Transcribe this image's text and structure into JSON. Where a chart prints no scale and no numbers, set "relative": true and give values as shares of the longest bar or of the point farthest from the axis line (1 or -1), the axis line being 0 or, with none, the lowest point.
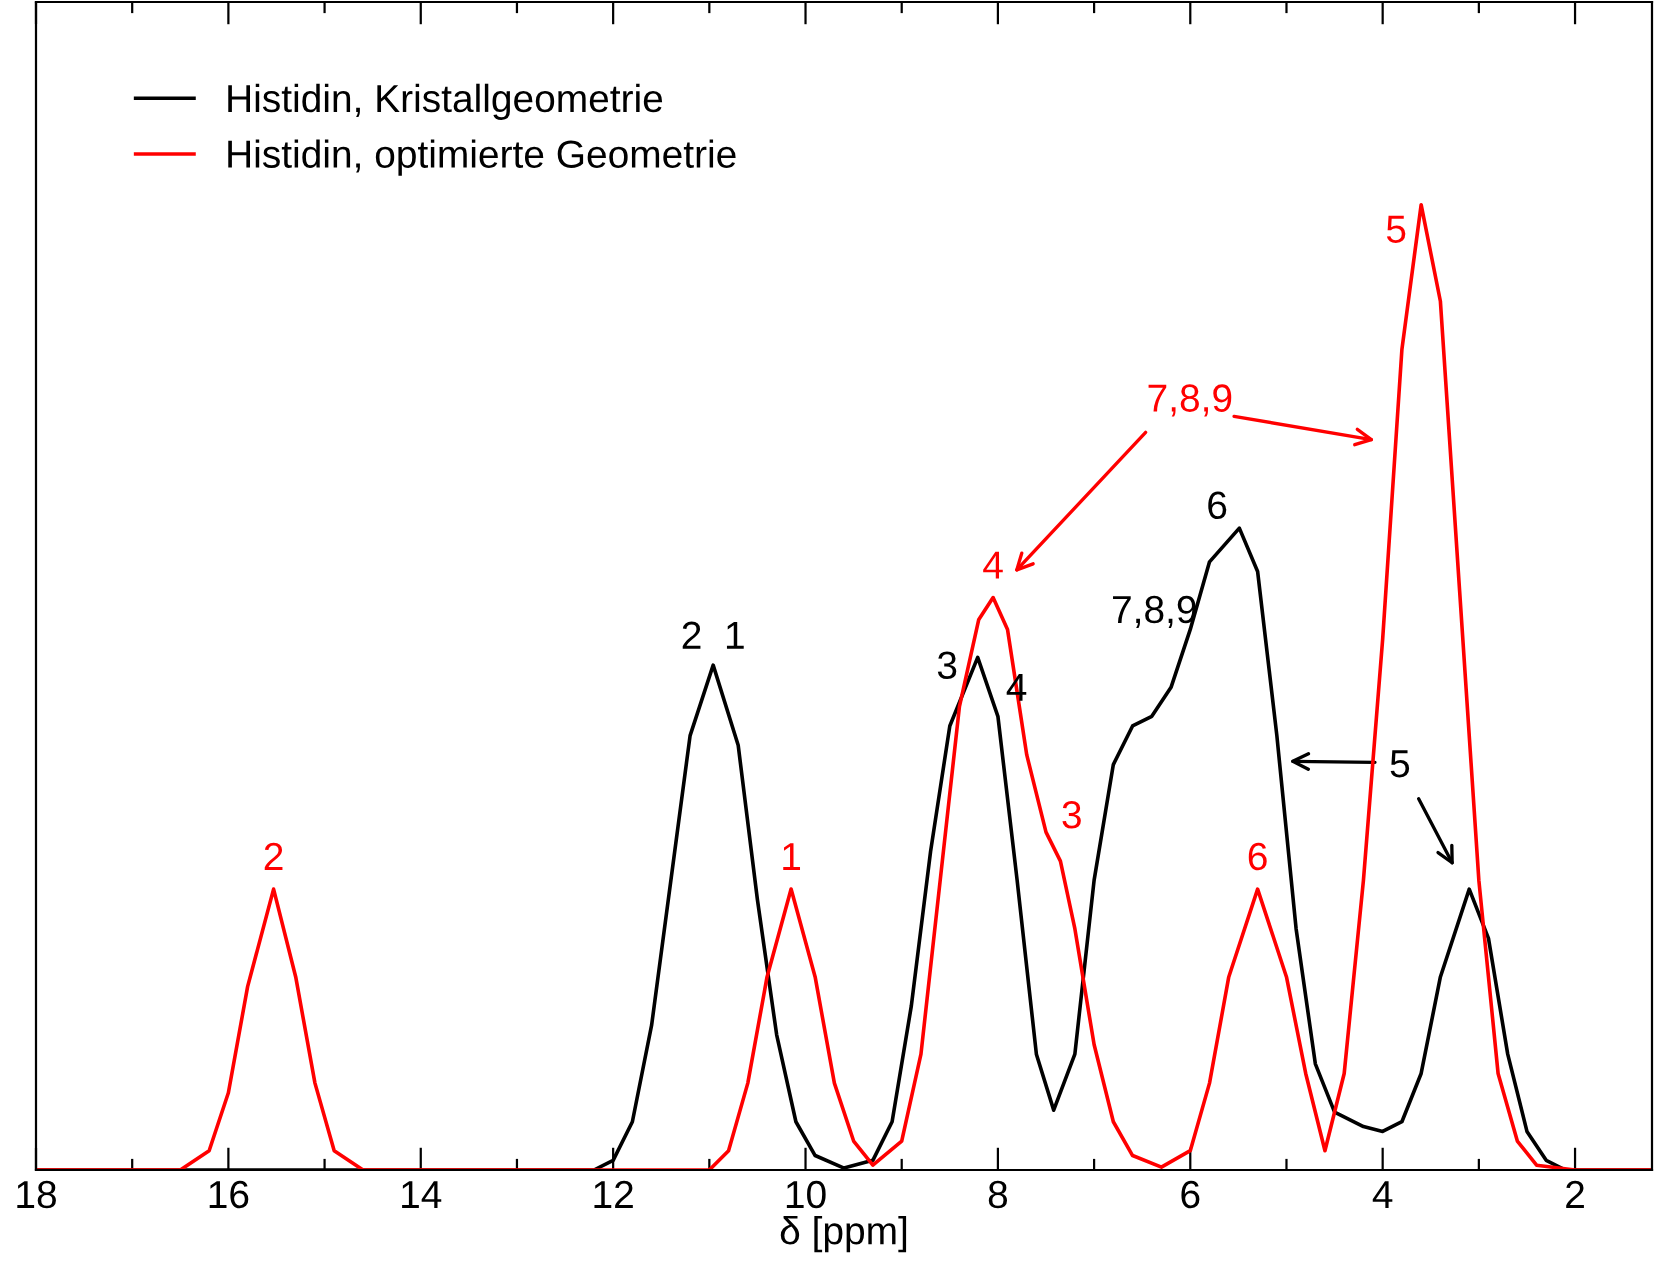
{
  "chart_data": {
    "type": "line",
    "relative": true,
    "xlabel": "δ [ppm]",
    "xlim": [
      18,
      1.2
    ],
    "xticks": [
      18,
      {
        "value": 17,
        "label": null
      },
      16,
      {
        "value": 15,
        "label": null
      },
      14,
      {
        "value": 13,
        "label": null
      },
      12,
      {
        "value": 11,
        "label": null
      },
      10,
      {
        "value": 9,
        "label": null
      },
      8,
      {
        "value": 7,
        "label": null
      },
      6,
      {
        "value": 5,
        "label": null
      },
      4,
      {
        "value": 3,
        "label": null
      },
      2
    ],
    "legend": "top left",
    "grid": false,
    "series": [
      {
        "name": "Histidin, Kristallgeometrie",
        "color": "#000000",
        "x": [
          18,
          12.2,
          12.0,
          11.8,
          11.6,
          11.4,
          11.2,
          10.96,
          10.7,
          10.5,
          10.3,
          10.1,
          9.9,
          9.6,
          9.3,
          9.1,
          8.9,
          8.7,
          8.5,
          8.21,
          8.0,
          7.8,
          7.6,
          7.42,
          7.2,
          7.0,
          6.8,
          6.6,
          6.4,
          6.2,
          6.0,
          5.8,
          5.49,
          5.3,
          5.1,
          4.9,
          4.7,
          4.5,
          4.2,
          4.0,
          3.8,
          3.6,
          3.4,
          3.1,
          2.9,
          2.7,
          2.5,
          2.3,
          2.1,
          1.2
        ],
        "values": [
          0,
          0,
          0.01,
          0.05,
          0.15,
          0.3,
          0.45,
          0.523,
          0.44,
          0.28,
          0.14,
          0.05,
          0.015,
          0.002,
          0.01,
          0.05,
          0.17,
          0.33,
          0.46,
          0.531,
          0.47,
          0.3,
          0.12,
          0.062,
          0.12,
          0.3,
          0.42,
          0.46,
          0.47,
          0.5,
          0.56,
          0.63,
          0.665,
          0.62,
          0.45,
          0.25,
          0.11,
          0.06,
          0.045,
          0.04,
          0.05,
          0.1,
          0.2,
          0.291,
          0.24,
          0.12,
          0.04,
          0.01,
          0,
          0
        ]
      },
      {
        "name": "Histidin, optimierte Geometrie",
        "color": "#ff0000",
        "x": [
          18,
          16.5,
          16.2,
          16.0,
          15.8,
          15.53,
          15.3,
          15.1,
          14.9,
          14.6,
          11.0,
          10.8,
          10.6,
          10.4,
          10.15,
          9.9,
          9.7,
          9.5,
          9.3,
          9.0,
          8.8,
          8.6,
          8.4,
          8.2,
          8.05,
          7.9,
          7.7,
          7.5,
          7.35,
          7.2,
          7.0,
          6.8,
          6.6,
          6.3,
          6.0,
          5.8,
          5.6,
          5.3,
          5.0,
          4.8,
          4.6,
          4.4,
          4.2,
          4.0,
          3.8,
          3.6,
          3.4,
          3.2,
          3.0,
          2.8,
          2.6,
          2.4,
          2.0,
          1.2
        ],
        "values": [
          0,
          0,
          0.02,
          0.08,
          0.19,
          0.291,
          0.2,
          0.09,
          0.02,
          0,
          0,
          0.02,
          0.09,
          0.2,
          0.291,
          0.2,
          0.09,
          0.03,
          0.005,
          0.03,
          0.12,
          0.3,
          0.48,
          0.57,
          0.593,
          0.56,
          0.43,
          0.35,
          0.32,
          0.25,
          0.13,
          0.05,
          0.015,
          0.003,
          0.02,
          0.09,
          0.2,
          0.291,
          0.2,
          0.1,
          0.02,
          0.1,
          0.3,
          0.55,
          0.85,
          1.0,
          0.9,
          0.6,
          0.3,
          0.1,
          0.03,
          0.005,
          0,
          0
        ]
      }
    ],
    "annotations": [
      {
        "text": "2",
        "x": 15.53,
        "y": 0.291
      },
      {
        "text": "1",
        "x": 10.15,
        "y": 0.291
      },
      {
        "text": "4",
        "x": 8.05,
        "y": 0.593
      },
      {
        "text": "3",
        "x": 7.46,
        "y": 0.34
      },
      {
        "text": "6",
        "x": 5.3,
        "y": 0.291
      },
      {
        "text": "5",
        "x": 3.6,
        "y": 1.0
      },
      "7,8,9",
      {
        "text": "2  1",
        "x": 10.96,
        "y": 0.523
      },
      {
        "text": "3",
        "x": 8.21,
        "y": 0.531
      },
      {
        "text": "4",
        "x": 8.21,
        "y": 0.531
      },
      {
        "text": "6",
        "x": 5.49,
        "y": 0.665
      },
      "7,8,9",
      "5"
    ]
  }
}
